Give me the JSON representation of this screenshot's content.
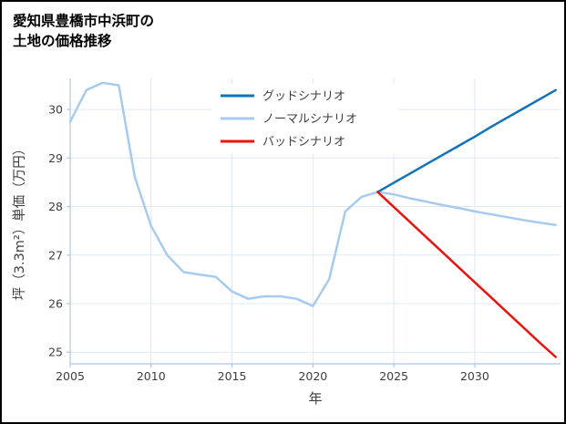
{
  "title": {
    "line1": "愛知県豊橋市中浜町の",
    "line2": "土地の価格推移"
  },
  "chart_data": {
    "type": "line",
    "title": "愛知県豊橋市中浜町の土地の価格推移",
    "xlabel": "年",
    "ylabel": "坪（3.3m²）単価（万円）",
    "xlim": [
      2005,
      2035.3
    ],
    "ylim": [
      24.76,
      30.64
    ],
    "xticks": [
      2005,
      2010,
      2015,
      2020,
      2025,
      2030
    ],
    "yticks": [
      25,
      26,
      27,
      28,
      29,
      30
    ],
    "grid": true,
    "legend_position": "upper center",
    "colors": {
      "grid": "#dfe8f5",
      "spine": "#aec6e4",
      "tick_text": "#3d3d3d",
      "legend_text": "#3f3f3f"
    },
    "series": [
      {
        "name": "グッドシナリオ",
        "color": "#1272b8",
        "x": [
          2024,
          2025,
          2026,
          2027,
          2028,
          2029,
          2030,
          2031,
          2032,
          2033,
          2034,
          2035
        ],
        "y": [
          28.3,
          28.49,
          28.68,
          28.87,
          29.06,
          29.25,
          29.44,
          29.64,
          29.83,
          30.02,
          30.21,
          30.4
        ]
      },
      {
        "name": "ノーマルシナリオ",
        "color": "#a6cbee",
        "x": [
          2005,
          2006,
          2007,
          2008,
          2009,
          2010,
          2011,
          2012,
          2013,
          2014,
          2015,
          2016,
          2017,
          2018,
          2019,
          2020,
          2021,
          2022,
          2023,
          2024,
          2025,
          2026,
          2027,
          2028,
          2029,
          2030,
          2031,
          2032,
          2033,
          2034,
          2035
        ],
        "y": [
          29.75,
          30.4,
          30.55,
          30.5,
          28.6,
          27.6,
          27.0,
          26.65,
          26.6,
          26.55,
          26.25,
          26.1,
          26.15,
          26.15,
          26.1,
          25.95,
          26.5,
          27.9,
          28.2,
          28.3,
          28.25,
          28.17,
          28.1,
          28.03,
          27.97,
          27.9,
          27.84,
          27.78,
          27.72,
          27.67,
          27.62
        ]
      },
      {
        "name": "バッドシナリオ",
        "color": "#e8150e",
        "x": [
          2024,
          2025,
          2026,
          2027,
          2028,
          2029,
          2030,
          2031,
          2032,
          2033,
          2034,
          2035
        ],
        "y": [
          28.3,
          27.99,
          27.68,
          27.37,
          27.06,
          26.75,
          26.44,
          26.13,
          25.82,
          25.51,
          25.2,
          24.9
        ]
      }
    ]
  }
}
